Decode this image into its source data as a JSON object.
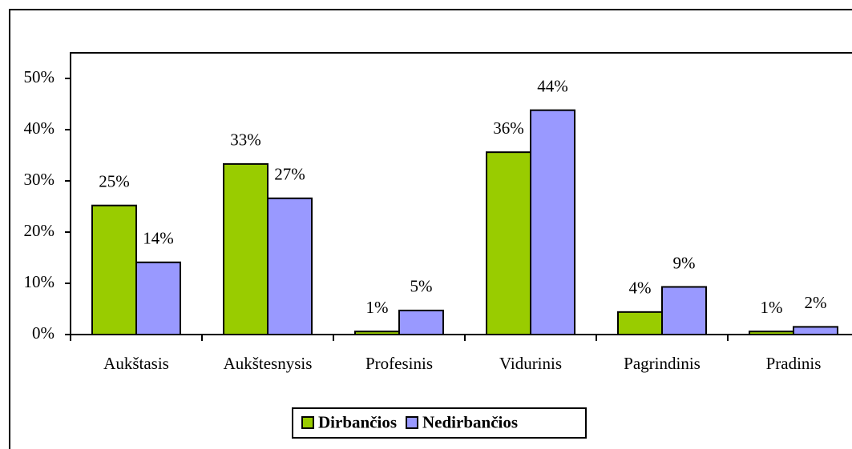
{
  "chart_data": {
    "type": "bar",
    "categories": [
      "Aukštasis",
      "Aukštesnysis",
      "Profesinis",
      "Vidurinis",
      "Pagrindinis",
      "Pradinis"
    ],
    "series": [
      {
        "name": "Dirbančios",
        "color": "#99cc00",
        "values": [
          25.2,
          33.3,
          0.6,
          35.6,
          4.4,
          0.6
        ],
        "value_labels": [
          "25%",
          "33%",
          "1%",
          "36%",
          "4%",
          "1%"
        ]
      },
      {
        "name": "Nedirbančios",
        "color": "#9999ff",
        "values": [
          14.1,
          26.6,
          4.7,
          43.8,
          9.3,
          1.5
        ],
        "value_labels": [
          "14%",
          "27%",
          "5%",
          "44%",
          "9%",
          "2%"
        ]
      }
    ],
    "ylim": [
      0,
      50
    ],
    "yticks": [
      {
        "value": 0,
        "label": "0%"
      },
      {
        "value": 10,
        "label": "10%"
      },
      {
        "value": 20,
        "label": "20%"
      },
      {
        "value": 30,
        "label": "30%"
      },
      {
        "value": 40,
        "label": "40%"
      },
      {
        "value": 50,
        "label": "50%"
      }
    ],
    "legend": "bottom"
  }
}
